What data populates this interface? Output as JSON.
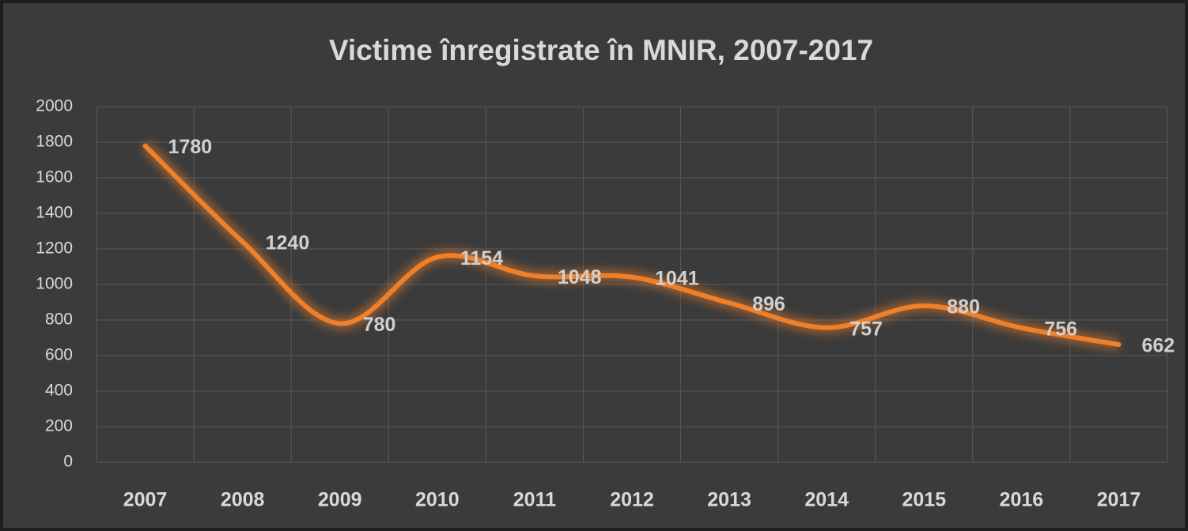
{
  "chart_data": {
    "type": "line",
    "title": "Victime înregistrate în MNIR, 2007-2017",
    "categories": [
      "2007",
      "2008",
      "2009",
      "2010",
      "2011",
      "2012",
      "2013",
      "2014",
      "2015",
      "2016",
      "2017"
    ],
    "series": [
      {
        "name": "Victime",
        "color": "#f07f2a",
        "values": [
          1780,
          1240,
          780,
          1154,
          1048,
          1041,
          896,
          757,
          880,
          756,
          662
        ]
      }
    ],
    "ylim": [
      0,
      2000
    ],
    "yticks": [
      0,
      200,
      400,
      600,
      800,
      1000,
      1200,
      1400,
      1600,
      1800,
      2000
    ],
    "grid": true,
    "smooth": true
  }
}
